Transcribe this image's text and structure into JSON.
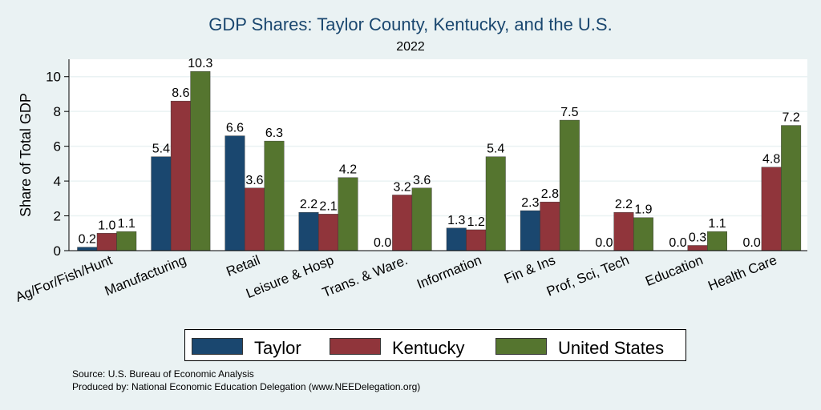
{
  "chart_data": {
    "type": "bar",
    "title": "GDP Shares: Taylor County, Kentucky, and the U.S.",
    "subtitle": "2022",
    "ylabel": "Share of Total GDP",
    "xlabel": "",
    "ylim": [
      0,
      11
    ],
    "yticks": [
      0,
      2,
      4,
      6,
      8,
      10
    ],
    "grid": true,
    "legend_position": "bottom",
    "categories": [
      "Ag/For/Fish/Hunt",
      "Manufacturing",
      "Retail",
      "Leisure & Hosp",
      "Trans. & Ware.",
      "Information",
      "Fin & Ins",
      "Prof, Sci, Tech",
      "Education",
      "Health Care"
    ],
    "series": [
      {
        "name": "Taylor",
        "color": "#1a476f",
        "values": [
          0.2,
          5.4,
          6.6,
          2.2,
          0.0,
          1.3,
          2.3,
          0.0,
          0.0,
          0.0
        ],
        "labels": [
          "0.2",
          "5.4",
          "6.6",
          "2.2",
          "0.0",
          "1.3",
          "2.3",
          "0.0",
          "0.0",
          "0.0"
        ]
      },
      {
        "name": "Kentucky",
        "color": "#90353b",
        "values": [
          1.0,
          8.6,
          3.6,
          2.1,
          3.2,
          1.2,
          2.8,
          2.2,
          0.3,
          4.8
        ],
        "labels": [
          "1.0",
          "8.6",
          "3.6",
          "2.1",
          "3.2",
          "1.2",
          "2.8",
          "2.2",
          "0.3",
          "4.8"
        ]
      },
      {
        "name": "United States",
        "color": "#55752f",
        "values": [
          1.1,
          10.3,
          6.3,
          4.2,
          3.6,
          5.4,
          7.5,
          1.9,
          1.1,
          7.2
        ],
        "labels": [
          "1.1",
          "10.3",
          "6.3",
          "4.2",
          "3.6",
          "5.4",
          "7.5",
          "1.9",
          "1.1",
          "7.2"
        ]
      }
    ]
  },
  "source_text": "Source: U.S. Bureau of Economic Analysis",
  "produced_text": "Produced by: National Economic Education Delegation (www.NEEDelegation.org)"
}
